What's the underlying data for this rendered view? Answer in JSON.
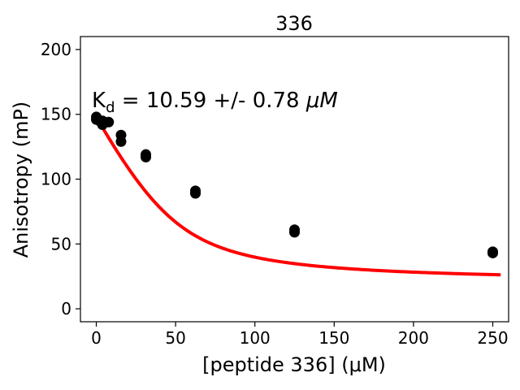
{
  "chart_data": {
    "type": "scatter",
    "title": "336",
    "xlabel": "[peptide 336] (μM)",
    "ylabel": "Anisotropy (mP)",
    "xlim": [
      -10,
      260
    ],
    "ylim": [
      -10,
      210
    ],
    "xticks": [
      0,
      50,
      100,
      150,
      200,
      250
    ],
    "yticks": [
      0,
      50,
      100,
      150,
      200
    ],
    "grid": false,
    "annotation": {
      "prefix": "K",
      "subscript": "d",
      "value_text": " = 10.59 +/- 0.78 ",
      "unit_text": "μM"
    },
    "points": [
      {
        "x": 0,
        "y": 148
      },
      {
        "x": 0,
        "y": 146
      },
      {
        "x": 1.95,
        "y": 145
      },
      {
        "x": 3.9,
        "y": 145
      },
      {
        "x": 3.9,
        "y": 142
      },
      {
        "x": 7.8,
        "y": 144
      },
      {
        "x": 15.6,
        "y": 134
      },
      {
        "x": 15.6,
        "y": 129
      },
      {
        "x": 31.25,
        "y": 119
      },
      {
        "x": 31.25,
        "y": 117
      },
      {
        "x": 62.5,
        "y": 91
      },
      {
        "x": 62.5,
        "y": 89
      },
      {
        "x": 125,
        "y": 61
      },
      {
        "x": 125,
        "y": 59
      },
      {
        "x": 250,
        "y": 44
      },
      {
        "x": 250,
        "y": 43
      }
    ],
    "fit": {
      "model": "single-site binding",
      "bottom": 20,
      "top": 148,
      "kd": 10.59,
      "receptor": 50,
      "x_range": [
        0,
        255
      ],
      "color": "#ff0000"
    },
    "point_color": "#000000"
  }
}
